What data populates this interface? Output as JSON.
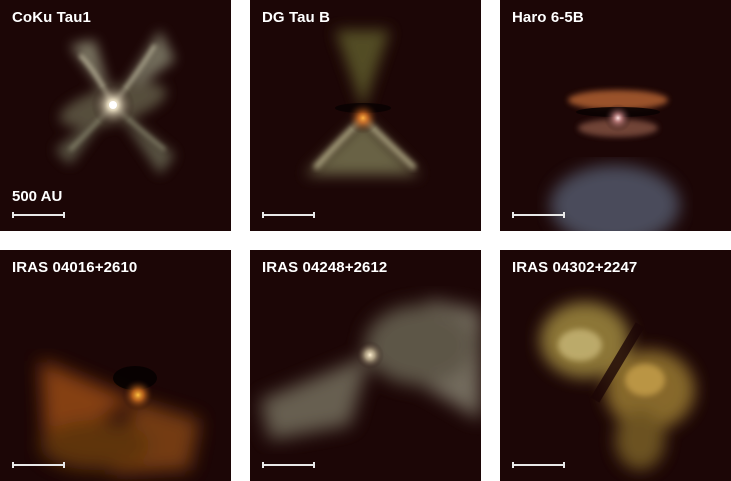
{
  "panels": [
    {
      "label": "CoKu Tau1",
      "scale_label": "500 AU"
    },
    {
      "label": "DG Tau B"
    },
    {
      "label": "Haro 6-5B"
    },
    {
      "label": "IRAS 04016+2610"
    },
    {
      "label": "IRAS 04248+2612"
    },
    {
      "label": "IRAS 04302+2247"
    }
  ],
  "colors": {
    "background": "#1a0505",
    "label_text": "#ffffff",
    "scalebar": "#e8e8e8"
  }
}
